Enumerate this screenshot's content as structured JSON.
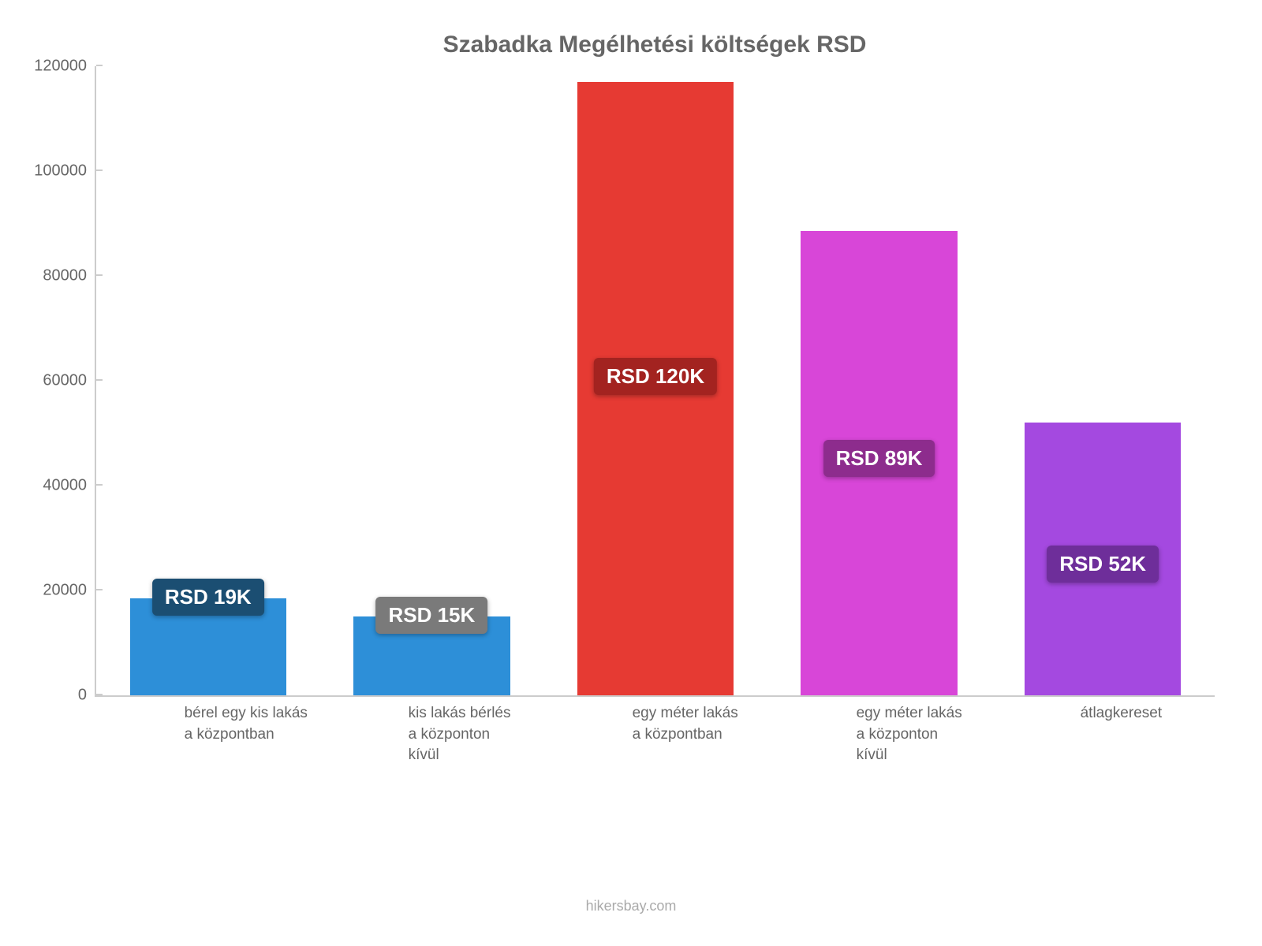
{
  "chart": {
    "type": "bar",
    "title": "Szabadka Megélhetési költségek RSD",
    "title_fontsize": 30,
    "title_color": "#666666",
    "background_color": "#ffffff",
    "axis_color": "#cccccc",
    "tick_label_color": "#666666",
    "tick_label_fontsize": 20,
    "ylim_min": 0,
    "ylim_max": 120000,
    "ytick_step": 20000,
    "yticks": [
      {
        "value": 0,
        "label": "0"
      },
      {
        "value": 20000,
        "label": "20000"
      },
      {
        "value": 40000,
        "label": "40000"
      },
      {
        "value": 60000,
        "label": "60000"
      },
      {
        "value": 80000,
        "label": "80000"
      },
      {
        "value": 100000,
        "label": "100000"
      },
      {
        "value": 120000,
        "label": "120000"
      }
    ],
    "bar_width_ratio": 0.7,
    "categories": [
      {
        "lines": [
          "bérel egy kis lakás",
          "a központban"
        ],
        "value": 18500,
        "value_label": "RSD 19K",
        "bar_color": "#2d8fd8",
        "badge_bg": "#1b4e72",
        "badge_text_color": "#ffffff",
        "badge_mode": "above"
      },
      {
        "lines": [
          "kis lakás bérlés",
          "a központon",
          "kívül"
        ],
        "value": 15000,
        "value_label": "RSD 15K",
        "bar_color": "#2d8fd8",
        "badge_bg": "#7a7a7a",
        "badge_text_color": "#ffffff",
        "badge_mode": "above"
      },
      {
        "lines": [
          "egy méter lakás",
          "a központban"
        ],
        "value": 117000,
        "value_label": "RSD 120K",
        "bar_color": "#e63a33",
        "badge_bg": "#a32320",
        "badge_text_color": "#ffffff",
        "badge_mode": "inside"
      },
      {
        "lines": [
          "egy méter lakás",
          "a központon",
          "kívül"
        ],
        "value": 88500,
        "value_label": "RSD 89K",
        "bar_color": "#d846d8",
        "badge_bg": "#8d2c8d",
        "badge_text_color": "#ffffff",
        "badge_mode": "inside"
      },
      {
        "lines": [
          "átlagkereset"
        ],
        "value": 52000,
        "value_label": "RSD 52K",
        "bar_color": "#a449e0",
        "badge_bg": "#6e2e9a",
        "badge_text_color": "#ffffff",
        "badge_mode": "inside"
      }
    ],
    "cat_label_fontsize": 19,
    "cat_label_color": "#666666",
    "badge_fontsize": 26
  },
  "footer": {
    "credit": "hikersbay.com",
    "color": "#aaaaaa",
    "fontsize": 18
  }
}
